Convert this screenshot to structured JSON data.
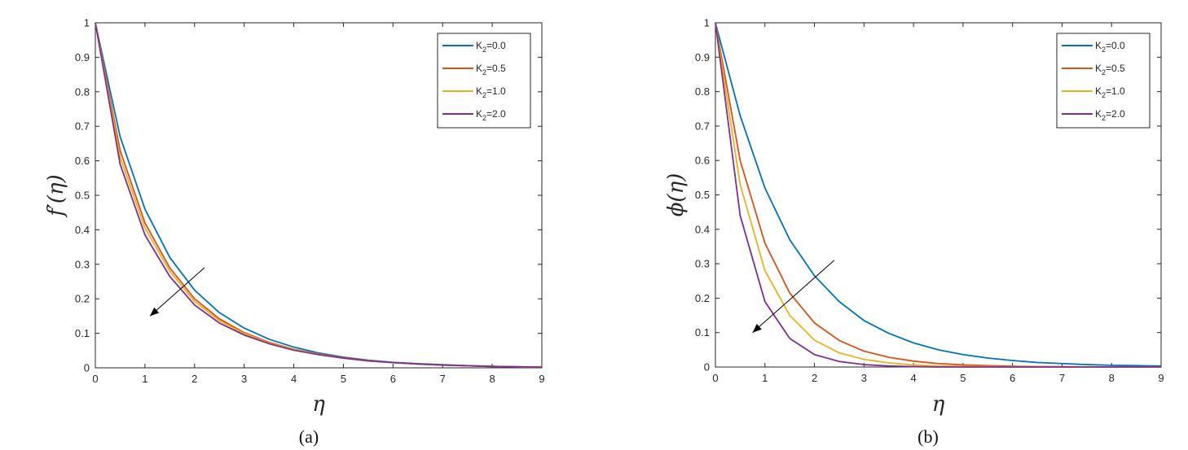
{
  "chart_data": [
    {
      "type": "line",
      "caption": "(a)",
      "xlabel": "η",
      "ylabel": "f′(η)",
      "xlim": [
        0,
        9
      ],
      "ylim": [
        0,
        1
      ],
      "xticks": [
        0,
        1,
        2,
        3,
        4,
        5,
        6,
        7,
        8,
        9
      ],
      "yticks": [
        0,
        0.1,
        0.2,
        0.3,
        0.4,
        0.5,
        0.6,
        0.7,
        0.8,
        0.9,
        1
      ],
      "legend_position": "top-right",
      "arrow": {
        "from": [
          2.2,
          0.29
        ],
        "to": [
          1.1,
          0.15
        ]
      },
      "series": [
        {
          "name": "0.0",
          "color": "#0072BD",
          "x": [
            0,
            0.5,
            1,
            1.5,
            2,
            2.5,
            3,
            3.5,
            4,
            4.5,
            5,
            5.5,
            6,
            6.5,
            7,
            7.5,
            8,
            8.5,
            9
          ],
          "y": [
            1.0,
            0.67,
            0.46,
            0.32,
            0.225,
            0.16,
            0.115,
            0.083,
            0.06,
            0.043,
            0.031,
            0.022,
            0.016,
            0.012,
            0.009,
            0.006,
            0.004,
            0.003,
            0.002
          ]
        },
        {
          "name": "0.5",
          "color": "#D95319",
          "x": [
            0,
            0.5,
            1,
            1.5,
            2,
            2.5,
            3,
            3.5,
            4,
            4.5,
            5,
            5.5,
            6,
            6.5,
            7,
            7.5,
            8,
            8.5,
            9
          ],
          "y": [
            1.0,
            0.63,
            0.42,
            0.29,
            0.2,
            0.142,
            0.102,
            0.074,
            0.054,
            0.04,
            0.029,
            0.021,
            0.015,
            0.011,
            0.008,
            0.006,
            0.004,
            0.003,
            0.002
          ]
        },
        {
          "name": "1.0",
          "color": "#EDB120",
          "x": [
            0,
            0.5,
            1,
            1.5,
            2,
            2.5,
            3,
            3.5,
            4,
            4.5,
            5,
            5.5,
            6,
            6.5,
            7,
            7.5,
            8,
            8.5,
            9
          ],
          "y": [
            1.0,
            0.61,
            0.405,
            0.28,
            0.192,
            0.137,
            0.099,
            0.072,
            0.053,
            0.039,
            0.028,
            0.02,
            0.015,
            0.011,
            0.008,
            0.006,
            0.004,
            0.003,
            0.002
          ]
        },
        {
          "name": "2.0",
          "color": "#7E2F8E",
          "x": [
            0,
            0.5,
            1,
            1.5,
            2,
            2.5,
            3,
            3.5,
            4,
            4.5,
            5,
            5.5,
            6,
            6.5,
            7,
            7.5,
            8,
            8.5,
            9
          ],
          "y": [
            1.0,
            0.59,
            0.385,
            0.265,
            0.182,
            0.13,
            0.095,
            0.07,
            0.051,
            0.038,
            0.028,
            0.02,
            0.015,
            0.011,
            0.008,
            0.006,
            0.004,
            0.003,
            0.002
          ]
        }
      ]
    },
    {
      "type": "line",
      "caption": "(b)",
      "xlabel": "η",
      "ylabel": "ϕ(η)",
      "xlim": [
        0,
        9
      ],
      "ylim": [
        0,
        1
      ],
      "xticks": [
        0,
        1,
        2,
        3,
        4,
        5,
        6,
        7,
        8,
        9
      ],
      "yticks": [
        0,
        0.1,
        0.2,
        0.3,
        0.4,
        0.5,
        0.6,
        0.7,
        0.8,
        0.9,
        1
      ],
      "legend_position": "top-right",
      "arrow": {
        "from": [
          2.4,
          0.31
        ],
        "to": [
          0.75,
          0.1
        ]
      },
      "series": [
        {
          "name": "0.0",
          "color": "#0072BD",
          "x": [
            0,
            0.5,
            1,
            1.5,
            2,
            2.5,
            3,
            3.5,
            4,
            4.5,
            5,
            5.5,
            6,
            6.5,
            7,
            7.5,
            8,
            8.5,
            9
          ],
          "y": [
            1.0,
            0.73,
            0.52,
            0.37,
            0.265,
            0.19,
            0.135,
            0.098,
            0.07,
            0.05,
            0.036,
            0.026,
            0.019,
            0.013,
            0.01,
            0.007,
            0.005,
            0.004,
            0.003
          ]
        },
        {
          "name": "0.5",
          "color": "#D95319",
          "x": [
            0,
            0.5,
            1,
            1.5,
            2,
            2.5,
            3,
            3.5,
            4,
            4.5,
            5,
            5.5,
            6,
            6.5,
            7,
            7.5,
            8,
            8.5,
            9
          ],
          "y": [
            1.0,
            0.6,
            0.36,
            0.215,
            0.128,
            0.077,
            0.046,
            0.028,
            0.017,
            0.01,
            0.006,
            0.004,
            0.002,
            0.001,
            0.001,
            0.0,
            0.0,
            0.0,
            0.0
          ]
        },
        {
          "name": "1.0",
          "color": "#EDB120",
          "x": [
            0,
            0.5,
            1,
            1.5,
            2,
            2.5,
            3,
            3.5,
            4,
            4.5,
            5,
            5.5,
            6,
            6.5,
            7,
            7.5,
            8,
            8.5,
            9
          ],
          "y": [
            1.0,
            0.53,
            0.28,
            0.15,
            0.078,
            0.041,
            0.022,
            0.012,
            0.006,
            0.003,
            0.002,
            0.001,
            0.0,
            0.0,
            0.0,
            0.0,
            0.0,
            0.0,
            0.0
          ]
        },
        {
          "name": "2.0",
          "color": "#7E2F8E",
          "x": [
            0,
            0.5,
            1,
            1.5,
            2,
            2.5,
            3,
            3.5,
            4,
            4.5,
            5,
            5.5,
            6,
            6.5,
            7,
            7.5,
            8,
            8.5,
            9
          ],
          "y": [
            1.0,
            0.44,
            0.19,
            0.083,
            0.036,
            0.016,
            0.007,
            0.003,
            0.001,
            0.0,
            0.0,
            0.0,
            0.0,
            0.0,
            0.0,
            0.0,
            0.0,
            0.0,
            0.0
          ]
        }
      ]
    }
  ]
}
